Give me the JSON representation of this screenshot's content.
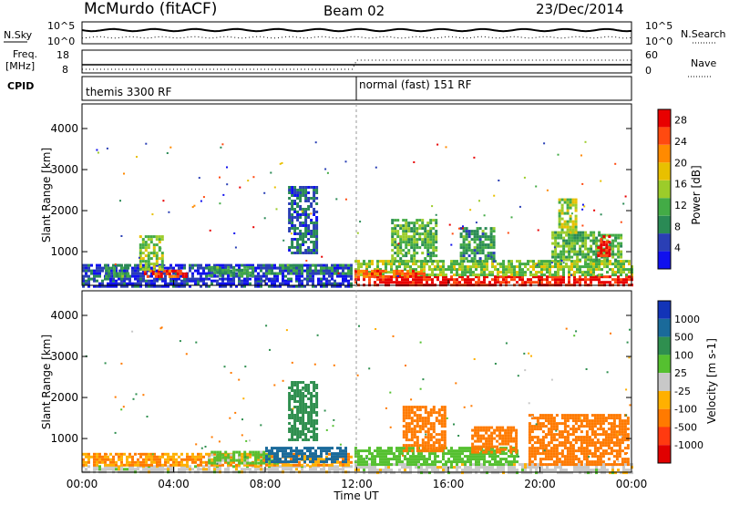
{
  "header": {
    "station": "McMurdo (fitACF)",
    "beam": "Beam 02",
    "date": "23/Dec/2014"
  },
  "noise_panel": {
    "left_label": "N.Sky",
    "left_ticks": [
      "10^5",
      "10^0"
    ],
    "right_label": "N.Search",
    "right_ticks": [
      "10^5",
      "10^0"
    ]
  },
  "freq_panel": {
    "left_label_1": "Freq.",
    "left_label_2": "[MHz]",
    "left_ticks": [
      "18",
      "8"
    ],
    "right_label": "Nave",
    "right_ticks": [
      "60",
      "0"
    ]
  },
  "cpid_panel": {
    "label": "CPID",
    "mode_1": "themis 3300 RF",
    "mode_2": "normal (fast) 151 RF"
  },
  "colors": {
    "power_scale": [
      "#1010ee",
      "#2a3fb5",
      "#2a8a55",
      "#43ab46",
      "#9ccc2a",
      "#e8c000",
      "#ff8a00",
      "#ff4a10",
      "#e80000"
    ],
    "velocity_scale": [
      "#1234b8",
      "#1a6a9a",
      "#2f8f4f",
      "#55c030",
      "#c8c8c8",
      "#ffb000",
      "#ff7a00",
      "#ff3a10",
      "#e00000"
    ]
  },
  "chart_data": [
    {
      "type": "heatmap",
      "title": "Power",
      "ylabel": "Slant Range [km]",
      "ylim": [
        180,
        4600
      ],
      "yticks": [
        "1000",
        "2000",
        "3000",
        "4000"
      ],
      "xlim": [
        "00:00",
        "24:00"
      ],
      "colorbar_label": "Power [dB]",
      "colorbar_ticks": [
        "4",
        "8",
        "12",
        "16",
        "20",
        "24",
        "28"
      ],
      "colorbar_range": [
        0,
        30
      ],
      "regions": [
        {
          "t0": 0.0,
          "t1": 11.8,
          "r0": 180,
          "r1": 320,
          "value": 4
        },
        {
          "t0": 0.0,
          "t1": 11.8,
          "r0": 320,
          "r1": 700,
          "value": 4
        },
        {
          "t0": 1.0,
          "t1": 2.0,
          "r0": 380,
          "r1": 700,
          "value": 10
        },
        {
          "t0": 2.7,
          "t1": 4.5,
          "r0": 380,
          "r1": 560,
          "value": 26
        },
        {
          "t0": 2.5,
          "t1": 3.5,
          "r0": 600,
          "r1": 1400,
          "value": 14
        },
        {
          "t0": 5.5,
          "t1": 7.5,
          "r0": 400,
          "r1": 650,
          "value": 10
        },
        {
          "t0": 8.0,
          "t1": 11.8,
          "r0": 450,
          "r1": 700,
          "value": 8
        },
        {
          "t0": 9.0,
          "t1": 10.2,
          "r0": 1000,
          "r1": 2600,
          "value": 6
        },
        {
          "t0": 11.9,
          "t1": 24.0,
          "r0": 180,
          "r1": 420,
          "value": 28
        },
        {
          "t0": 11.9,
          "t1": 24.0,
          "r0": 420,
          "r1": 800,
          "value": 14
        },
        {
          "t0": 11.9,
          "t1": 15.0,
          "r0": 400,
          "r1": 560,
          "value": 24
        },
        {
          "t0": 13.5,
          "t1": 15.5,
          "r0": 800,
          "r1": 1800,
          "value": 12
        },
        {
          "t0": 16.5,
          "t1": 18.0,
          "r0": 800,
          "r1": 1600,
          "value": 10
        },
        {
          "t0": 20.5,
          "t1": 23.5,
          "r0": 800,
          "r1": 1500,
          "value": 12
        },
        {
          "t0": 22.5,
          "t1": 23.0,
          "r0": 900,
          "r1": 1400,
          "value": 28
        },
        {
          "t0": 20.8,
          "t1": 21.6,
          "r0": 1500,
          "r1": 2300,
          "value": 16
        }
      ]
    },
    {
      "type": "heatmap",
      "title": "Velocity",
      "ylabel": "Slant Range [km]",
      "xlabel": "Time UT",
      "ylim": [
        180,
        4600
      ],
      "yticks": [
        "1000",
        "2000",
        "3000",
        "4000"
      ],
      "xlim": [
        "00:00",
        "24:00"
      ],
      "xticks": [
        "00:00",
        "04:00",
        "08:00",
        "12:00",
        "16:00",
        "20:00",
        "00:00"
      ],
      "colorbar_label": "Velocity [m s-1]",
      "colorbar_ticks": [
        "1000",
        "500",
        "100",
        "25",
        "-25",
        "-100",
        "-500",
        "-1000"
      ],
      "regions": [
        {
          "t0": 0.0,
          "t1": 11.8,
          "r0": 180,
          "r1": 350,
          "value": 0
        },
        {
          "t0": 0.0,
          "t1": 11.8,
          "r0": 350,
          "r1": 650,
          "value": -100
        },
        {
          "t0": 5.5,
          "t1": 8.5,
          "r0": 400,
          "r1": 700,
          "value": 50
        },
        {
          "t0": 8.0,
          "t1": 11.5,
          "r0": 450,
          "r1": 800,
          "value": 700
        },
        {
          "t0": 9.0,
          "t1": 10.2,
          "r0": 1000,
          "r1": 2400,
          "value": 300
        },
        {
          "t0": 11.9,
          "t1": 24.0,
          "r0": 180,
          "r1": 400,
          "value": 0
        },
        {
          "t0": 11.9,
          "t1": 19.0,
          "r0": 400,
          "r1": 800,
          "value": 60
        },
        {
          "t0": 14.0,
          "t1": 15.8,
          "r0": 700,
          "r1": 1800,
          "value": -300
        },
        {
          "t0": 19.5,
          "t1": 23.8,
          "r0": 400,
          "r1": 1600,
          "value": -300
        },
        {
          "t0": 17.0,
          "t1": 19.0,
          "r0": 700,
          "r1": 1300,
          "value": -200
        }
      ]
    }
  ]
}
